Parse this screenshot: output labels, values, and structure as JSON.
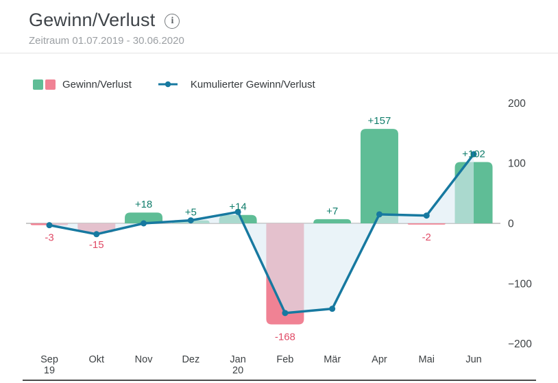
{
  "header": {
    "title": "Gewinn/Verlust",
    "info_glyph": "i",
    "subtitle": "Zeitraum 01.07.2019 - 30.06.2020"
  },
  "legend": [
    {
      "label": "Gewinn/Verlust",
      "type": "bar-swatches",
      "colors": [
        "#5fbd96",
        "#f08294"
      ]
    },
    {
      "label": "Kumulierter Gewinn/Verlust",
      "type": "line-marker",
      "color": "#1779a0"
    }
  ],
  "chart_data": {
    "type": "bar+line",
    "title": "Gewinn/Verlust",
    "categories": [
      "Sep",
      "Okt",
      "Nov",
      "Dez",
      "Jan",
      "Feb",
      "Mär",
      "Apr",
      "Mai",
      "Jun"
    ],
    "category_sublabels": [
      "19",
      "",
      "",
      "",
      "20",
      "",
      "",
      "",
      "",
      ""
    ],
    "series": [
      {
        "name": "Gewinn/Verlust",
        "type": "bar",
        "values": [
          -3,
          -15,
          18,
          5,
          14,
          -168,
          7,
          157,
          -2,
          102
        ],
        "labels": [
          "-3",
          "-15",
          "+18",
          "+5",
          "+14",
          "-168",
          "+7",
          "+157",
          "-2",
          "+102"
        ],
        "positive_color": "#5fbd96",
        "negative_color": "#f08294",
        "positive_label_color": "#107d6b",
        "negative_label_color": "#e04b66"
      },
      {
        "name": "Kumulierter Gewinn/Verlust",
        "type": "line",
        "values": [
          -3,
          -18,
          0,
          5,
          19,
          -149,
          -142,
          15,
          13,
          115
        ],
        "color": "#1779a0",
        "area_fill": "#dcebf4",
        "area_opacity": 0.6
      }
    ],
    "y_axis": {
      "position": "right",
      "ticks": [
        200,
        100,
        0,
        -100,
        -200
      ],
      "tick_labels": [
        "200",
        "100",
        "0",
        "−100",
        "−200"
      ],
      "range": [
        -200,
        225
      ]
    },
    "grid": false,
    "axis_color": "#c9c9c9",
    "label_color": "#3c4043"
  }
}
